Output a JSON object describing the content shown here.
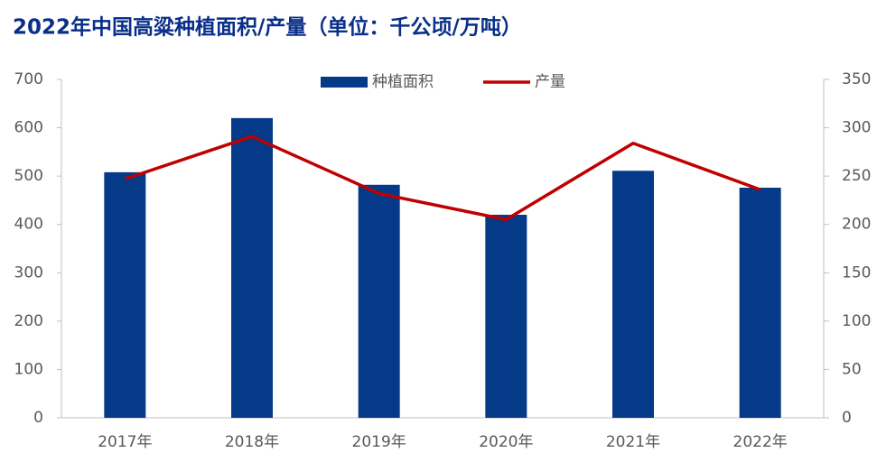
{
  "chart_data": {
    "type": "bar_line",
    "title": "2022年中国高粱种植面积/产量（单位：千公顷/万吨）",
    "categories": [
      "2017年",
      "2018年",
      "2019年",
      "2020年",
      "2021年",
      "2022年"
    ],
    "series": [
      {
        "name": "种植面积",
        "color": "#043a88",
        "type": "bar",
        "values": [
          508,
          620,
          482,
          420,
          511,
          476
        ]
      },
      {
        "name": "产量",
        "color": "#c00000",
        "type": "line",
        "axis": "y2",
        "values": [
          247,
          291,
          232,
          205,
          284,
          236
        ]
      }
    ],
    "ylim": [
      0,
      700
    ],
    "yticks": [
      0,
      100,
      200,
      300,
      400,
      500,
      600,
      700
    ],
    "y2lim": [
      0,
      350
    ],
    "y2ticks": [
      0,
      50,
      100,
      150,
      200,
      250,
      300,
      350
    ],
    "legend": "top"
  }
}
